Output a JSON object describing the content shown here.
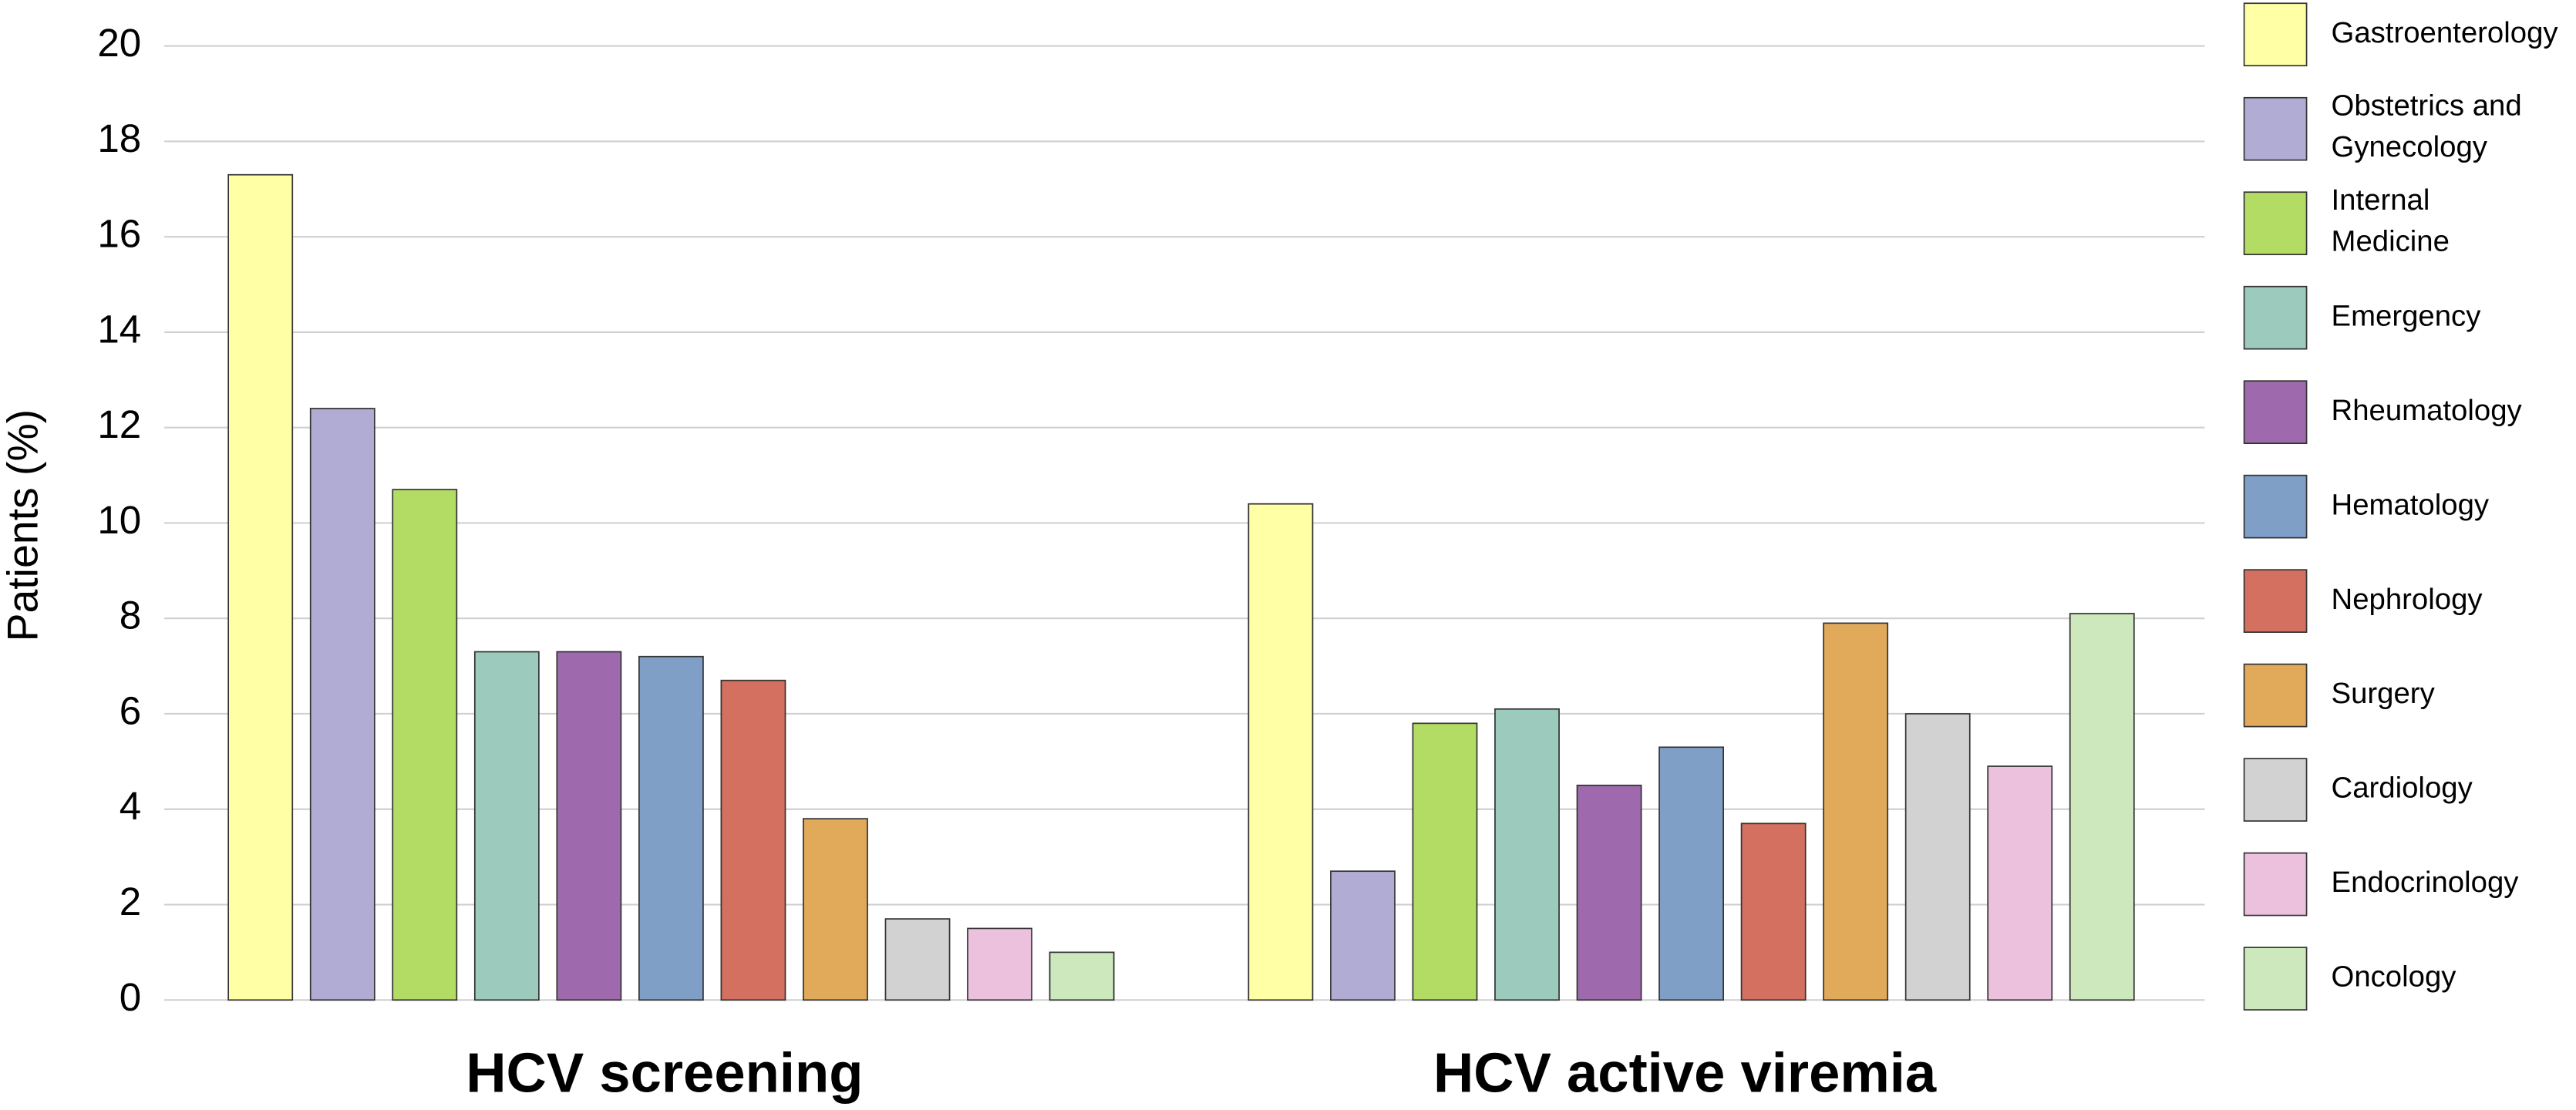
{
  "chart_data": {
    "type": "bar",
    "y_label": "Patients (%)",
    "categories": [
      "HCV screening",
      "HCV active viremia"
    ],
    "series": [
      {
        "name": "Gastroenterology",
        "color": "#ffffa6",
        "values": [
          17.3,
          10.4
        ]
      },
      {
        "name": "Obstetrics and Gynecology",
        "color": "#b1acd3",
        "values": [
          12.4,
          2.7
        ]
      },
      {
        "name": "Internal Medicine",
        "color": "#b3dc64",
        "values": [
          10.7,
          5.8
        ]
      },
      {
        "name": "Emergency",
        "color": "#9ccabd",
        "values": [
          7.3,
          6.1
        ]
      },
      {
        "name": "Rheumatology",
        "color": "#9f6aad",
        "values": [
          7.3,
          4.5
        ]
      },
      {
        "name": "Hematology",
        "color": "#7f9fc7",
        "values": [
          7.2,
          5.3
        ]
      },
      {
        "name": "Nephrology",
        "color": "#d4705f",
        "values": [
          6.7,
          3.7
        ]
      },
      {
        "name": "Surgery",
        "color": "#e1a95a",
        "values": [
          3.8,
          7.9
        ]
      },
      {
        "name": "Cardiology",
        "color": "#d2d2d2",
        "values": [
          1.7,
          6.0
        ]
      },
      {
        "name": "Endocrinology",
        "color": "#ebc1dd",
        "values": [
          1.5,
          4.9
        ]
      },
      {
        "name": "Oncology",
        "color": "#cde8bc",
        "values": [
          1.0,
          8.1
        ]
      }
    ],
    "ylim": [
      0,
      20
    ],
    "yticks": [
      0,
      2,
      4,
      6,
      8,
      10,
      12,
      14,
      16,
      18,
      20
    ],
    "grid": true,
    "legend": "right"
  }
}
